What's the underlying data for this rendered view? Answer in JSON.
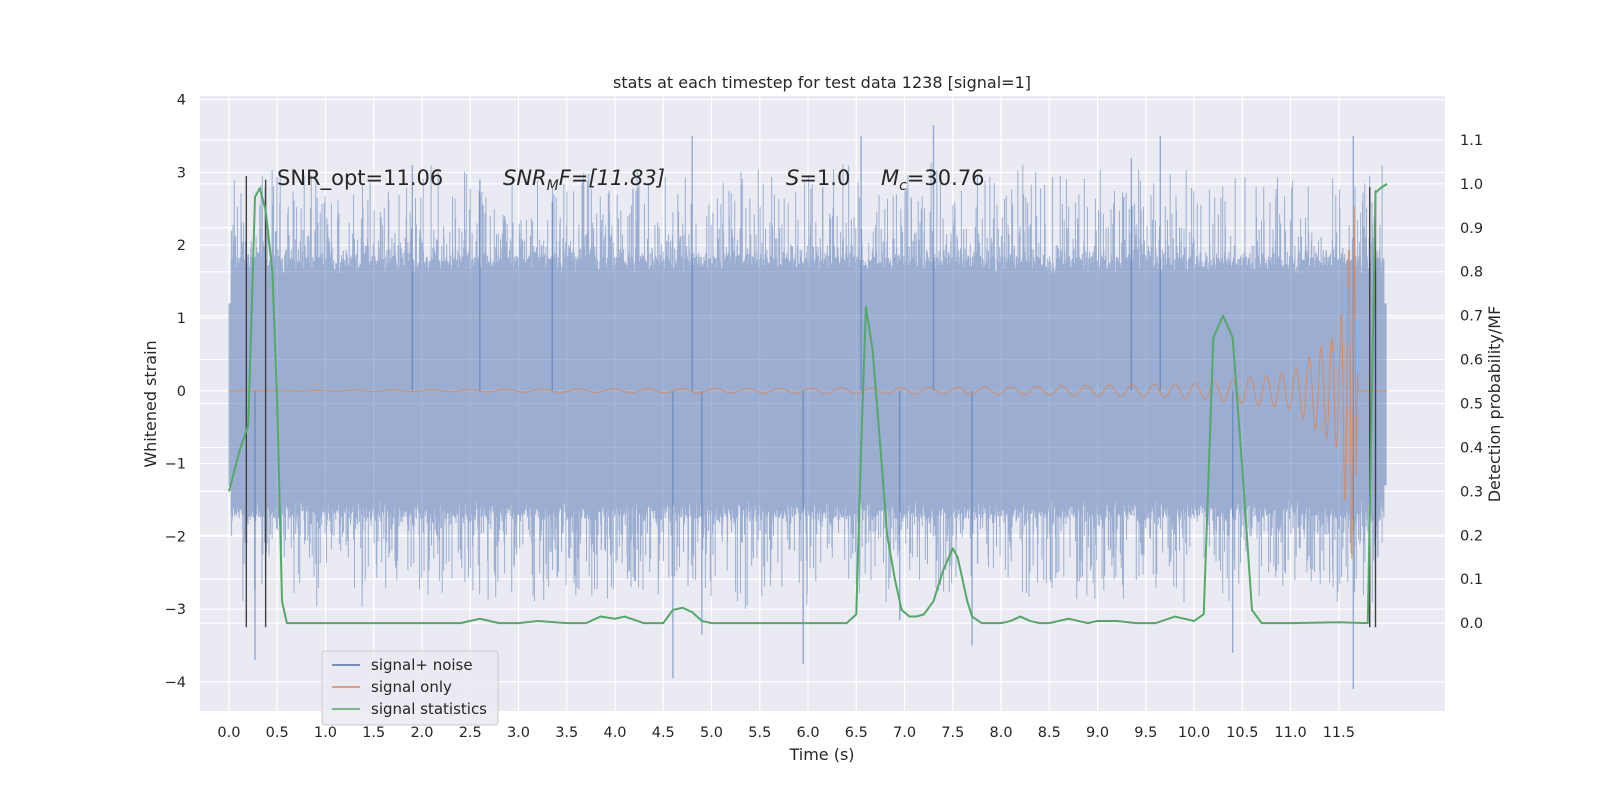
{
  "chart_data": {
    "type": "line",
    "title": "stats at each timestep for test data 1238 [signal=1]",
    "xlabel": "Time (s)",
    "ylabel": "Whitened strain",
    "y2label": "Detection probability/MF",
    "xlim": [
      -0.3,
      12.6
    ],
    "ylim": [
      -4.4,
      4.05
    ],
    "y2lim": [
      -0.2,
      1.2
    ],
    "grid": true,
    "background": "#eaeaf2",
    "legend_position": "lower-left",
    "x_ticks": [
      "0.0",
      "0.5",
      "1.0",
      "1.5",
      "2.0",
      "2.5",
      "3.0",
      "3.5",
      "4.0",
      "4.5",
      "5.0",
      "5.5",
      "6.0",
      "6.5",
      "7.0",
      "7.5",
      "8.0",
      "8.5",
      "9.0",
      "9.5",
      "10.0",
      "10.5",
      "11.0",
      "11.5"
    ],
    "y_ticks": [
      "4",
      "3",
      "2",
      "1",
      "0",
      "−1",
      "−2",
      "−3",
      "−4"
    ],
    "y2_ticks": [
      "1.1",
      "1.0",
      "0.9",
      "0.8",
      "0.7",
      "0.6",
      "0.5",
      "0.4",
      "0.3",
      "0.2",
      "0.1",
      "0.0"
    ],
    "annotations": {
      "snr_opt": "SNR_opt=11.06",
      "snr_mf_base": "SNR",
      "snr_mf_sub": "M",
      "snr_mf_rest": "F=[11.83]",
      "s_italic": "S",
      "s_rest": "=1.0",
      "mc_base": "M",
      "mc_sub": "c",
      "mc_rest": "=30.76"
    },
    "legend": [
      {
        "label": "signal+ noise",
        "color": "#4c72b0"
      },
      {
        "label": "signal only",
        "color": "#dd8452"
      },
      {
        "label": "signal statistics",
        "color": "#55a868"
      }
    ],
    "series": [
      {
        "name": "signal+ noise",
        "axis": "left",
        "color": "#4c72b0",
        "t_range": [
          0.0,
          11.99
        ],
        "envelope_typical": 1.6,
        "peaks": [
          {
            "x": 0.27,
            "y": -3.7
          },
          {
            "x": 1.9,
            "y": 3.1
          },
          {
            "x": 2.6,
            "y": 2.9
          },
          {
            "x": 3.35,
            "y": 2.6
          },
          {
            "x": 4.6,
            "y": -3.95
          },
          {
            "x": 4.8,
            "y": 3.5
          },
          {
            "x": 4.9,
            "y": -3.35
          },
          {
            "x": 5.95,
            "y": -3.75
          },
          {
            "x": 6.55,
            "y": 3.5
          },
          {
            "x": 6.95,
            "y": -3.15
          },
          {
            "x": 7.3,
            "y": 3.65
          },
          {
            "x": 7.7,
            "y": -3.5
          },
          {
            "x": 9.35,
            "y": 3.2
          },
          {
            "x": 9.65,
            "y": 3.5
          },
          {
            "x": 10.4,
            "y": -3.6
          },
          {
            "x": 11.65,
            "y": 3.5
          },
          {
            "x": 11.65,
            "y": -4.1
          }
        ]
      },
      {
        "name": "signal only",
        "axis": "left",
        "color": "#dd8452",
        "description_points": [
          {
            "x": 0.0,
            "y": 0.0
          },
          {
            "x": 8.0,
            "y": 0.05
          },
          {
            "x": 10.0,
            "y": 0.1
          },
          {
            "x": 11.0,
            "y": 0.25
          },
          {
            "x": 11.5,
            "y": 0.8
          },
          {
            "x": 11.66,
            "y": 2.6
          },
          {
            "x": 11.7,
            "y": 0.0
          }
        ]
      },
      {
        "name": "signal statistics",
        "axis": "right",
        "color": "#55a868",
        "x": [
          0.0,
          0.12,
          0.2,
          0.27,
          0.32,
          0.38,
          0.45,
          0.5,
          0.55,
          0.6,
          1.0,
          2.0,
          2.4,
          2.6,
          2.8,
          3.0,
          3.2,
          3.5,
          3.7,
          3.85,
          4.0,
          4.1,
          4.3,
          4.4,
          4.5,
          4.6,
          4.7,
          4.8,
          4.9,
          5.0,
          5.5,
          6.0,
          6.4,
          6.5,
          6.55,
          6.6,
          6.67,
          6.75,
          6.82,
          6.9,
          6.97,
          7.05,
          7.12,
          7.2,
          7.3,
          7.4,
          7.5,
          7.55,
          7.6,
          7.65,
          7.7,
          7.8,
          8.0,
          8.1,
          8.2,
          8.3,
          8.4,
          8.5,
          8.7,
          8.9,
          9.0,
          9.2,
          9.4,
          9.6,
          9.8,
          10.0,
          10.1,
          10.2,
          10.3,
          10.4,
          10.5,
          10.6,
          10.7,
          10.8,
          11.0,
          11.5,
          11.8,
          11.88,
          11.93,
          12.0
        ],
        "y": [
          0.3,
          0.4,
          0.45,
          0.97,
          0.99,
          0.94,
          0.8,
          0.5,
          0.05,
          0.0,
          0.0,
          0.0,
          0.0,
          0.01,
          0.0,
          0.0,
          0.005,
          0.0,
          0.0,
          0.015,
          0.01,
          0.015,
          0.0,
          0.0,
          0.0,
          0.03,
          0.035,
          0.025,
          0.005,
          0.0,
          0.0,
          0.0,
          0.0,
          0.02,
          0.4,
          0.72,
          0.62,
          0.4,
          0.2,
          0.1,
          0.03,
          0.015,
          0.015,
          0.02,
          0.05,
          0.12,
          0.17,
          0.15,
          0.1,
          0.05,
          0.015,
          0.0,
          0.0,
          0.005,
          0.015,
          0.005,
          0.0,
          0.0,
          0.01,
          0.0,
          0.005,
          0.005,
          0.0,
          0.0,
          0.015,
          0.005,
          0.02,
          0.65,
          0.7,
          0.65,
          0.35,
          0.03,
          0.0,
          0.0,
          0.0,
          0.002,
          0.0,
          0.98,
          0.99,
          1.0
        ]
      }
    ],
    "vertical_markers": [
      {
        "x": 0.18,
        "y_top": 2.95,
        "y_bottom": -3.25
      },
      {
        "x": 0.38,
        "y_top": 2.9,
        "y_bottom": -3.25
      },
      {
        "x": 11.82,
        "y_top": 2.8,
        "y_bottom": -3.25
      },
      {
        "x": 11.88,
        "y_top": 2.75,
        "y_bottom": -3.25
      }
    ]
  }
}
